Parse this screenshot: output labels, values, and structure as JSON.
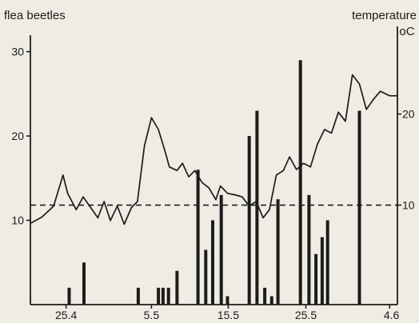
{
  "chart_data": {
    "type": "bar",
    "left_axis_label": "flea beetles",
    "right_axis_label": "temperature",
    "right_axis_unit": "oC",
    "left_ticks": [
      10,
      20,
      30
    ],
    "right_ticks": [
      10,
      20
    ],
    "ylim": [
      0,
      33
    ],
    "temperature_ylim": [
      -0.92,
      29.62
    ],
    "x_tick_labels": [
      "25.4",
      "5.5",
      "15.5",
      "25.5",
      "4.6"
    ],
    "x_tick_days": [
      4.6,
      15.6,
      25.5,
      35.5,
      46.3
    ],
    "xlim": [
      0,
      47.3
    ],
    "reference_temperature": 10,
    "bars": [
      {
        "day": 5.0,
        "value": 2
      },
      {
        "day": 6.9,
        "value": 5
      },
      {
        "day": 13.9,
        "value": 2
      },
      {
        "day": 16.5,
        "value": 2
      },
      {
        "day": 17.1,
        "value": 2
      },
      {
        "day": 17.8,
        "value": 2
      },
      {
        "day": 18.9,
        "value": 4
      },
      {
        "day": 21.6,
        "value": 16
      },
      {
        "day": 22.6,
        "value": 6.5
      },
      {
        "day": 23.5,
        "value": 10
      },
      {
        "day": 24.6,
        "value": 13
      },
      {
        "day": 25.4,
        "value": 1
      },
      {
        "day": 28.2,
        "value": 20
      },
      {
        "day": 29.2,
        "value": 23
      },
      {
        "day": 30.2,
        "value": 2
      },
      {
        "day": 31.1,
        "value": 1
      },
      {
        "day": 31.9,
        "value": 12.5
      },
      {
        "day": 34.8,
        "value": 29
      },
      {
        "day": 35.9,
        "value": 13
      },
      {
        "day": 36.8,
        "value": 6
      },
      {
        "day": 37.6,
        "value": 8
      },
      {
        "day": 38.3,
        "value": 10
      },
      {
        "day": 42.4,
        "value": 23
      }
    ],
    "temperature": {
      "day": [
        0,
        1.5,
        3,
        4.2,
        4.8,
        5.9,
        6.8,
        7.8,
        8.7,
        9.5,
        10.3,
        11.2,
        12.1,
        13.0,
        13.8,
        14.7,
        15.6,
        16.5,
        17.4,
        17.9,
        18.9,
        19.6,
        20.4,
        21.2,
        22.1,
        23.0,
        23.9,
        24.5,
        25.4,
        26.5,
        27.3,
        28.2,
        29.1,
        30.0,
        30.8,
        31.7,
        32.6,
        33.4,
        34.3,
        35.2,
        36.1,
        37.0,
        37.9,
        38.8,
        39.7,
        40.6,
        41.5,
        42.4,
        43.3,
        44.2,
        45.1,
        46.3,
        47.3
      ],
      "value": [
        8,
        8.7,
        9.9,
        13.3,
        11.3,
        9.5,
        10.9,
        9.7,
        8.6,
        10.4,
        8.3,
        9.9,
        7.9,
        9.7,
        10.4,
        16.5,
        19.6,
        18.3,
        15.8,
        14.2,
        13.8,
        14.6,
        13.1,
        13.8,
        12.5,
        11.9,
        10.6,
        12.1,
        11.3,
        11.1,
        10.9,
        9.9,
        10.4,
        8.6,
        9.5,
        13.3,
        13.8,
        15.3,
        13.9,
        14.6,
        14.2,
        16.7,
        18.3,
        17.9,
        20.2,
        19.2,
        24.3,
        23.3,
        20.5,
        21.6,
        22.5,
        22,
        22
      ]
    }
  }
}
